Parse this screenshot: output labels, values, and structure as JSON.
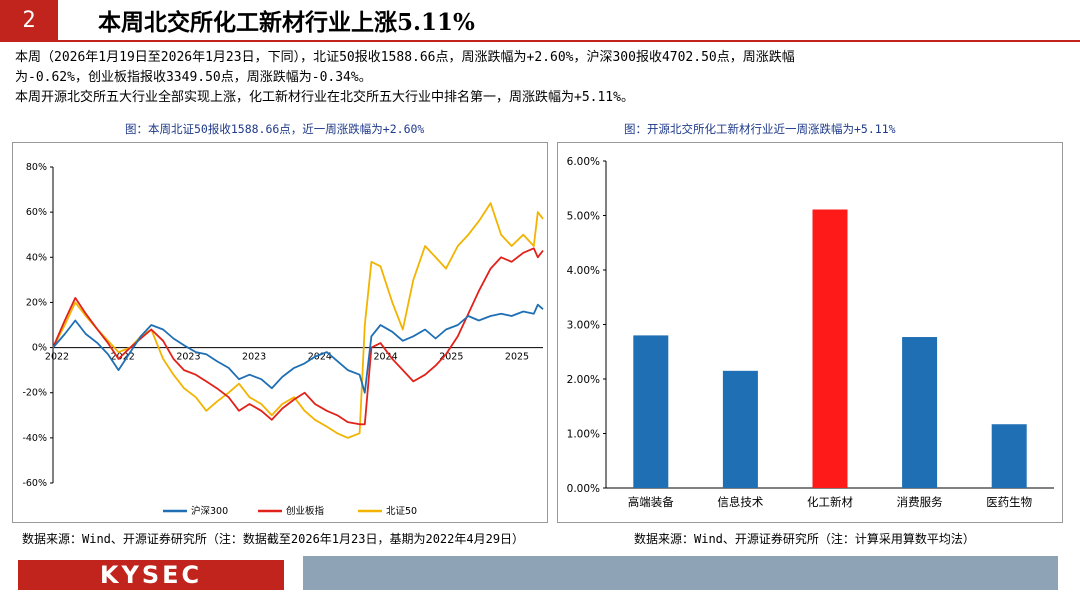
{
  "slide": {
    "page_number": "2",
    "title": "本周北交所化工新材行业上涨5.11%",
    "summary_lines": [
      "本周（2026年1月19日至2026年1月23日，下同），北证50报收1588.66点，周涨跌幅为+2.60%，沪深300报收4702.50点，周涨跌幅",
      "为-0.62%，创业板指报收3349.50点，周涨跌幅为-0.34%。",
      "本周开源北交所五大行业全部实现上涨，化工新材行业在北交所五大行业中排名第一，周涨跌幅为+5.11%。"
    ],
    "left_caption": "图：本周北证50报收1588.66点，近一周涨跌幅为+2.60%",
    "right_caption": "图：开源北交所化工新材行业近一周涨跌幅为+5.11%",
    "left_source": "数据来源：Wind、开源证券研究所（注：数据截至2026年1月23日，基期为2022年4月29日）",
    "right_source": "数据来源：Wind、开源证券研究所（注：计算采用算数平均法）",
    "logo_text": "KYSEC"
  },
  "colors": {
    "accent_red": "#c0241c",
    "csi300": "#1f6fb4",
    "chinext": "#e0221b",
    "bse50": "#f2b400",
    "bar_blue": "#1f6fb4",
    "bar_highlight": "#ff1a1a",
    "footer_bar": "#8ea3b5"
  },
  "chart_data": [
    {
      "type": "line",
      "x_tick_labels": [
        "2022",
        "2022",
        "2023",
        "2023",
        "2024",
        "2024",
        "2025",
        "2025"
      ],
      "y_tick_labels": [
        "80%",
        "60%",
        "40%",
        "20%",
        "0%",
        "-20%",
        "-40%",
        "-60%"
      ],
      "ylim": [
        -60,
        80
      ],
      "x_range": [
        2022.33,
        2026.07
      ],
      "grid": false,
      "legend_position": "bottom-center",
      "series": [
        {
          "name": "沪深300",
          "color": "#1f6fb4",
          "points": [
            [
              2022.33,
              0
            ],
            [
              2022.42,
              6
            ],
            [
              2022.5,
              12
            ],
            [
              2022.58,
              6
            ],
            [
              2022.67,
              2
            ],
            [
              2022.75,
              -3
            ],
            [
              2022.83,
              -10
            ],
            [
              2022.92,
              -2
            ],
            [
              2023.0,
              5
            ],
            [
              2023.08,
              10
            ],
            [
              2023.17,
              8
            ],
            [
              2023.25,
              4
            ],
            [
              2023.33,
              1
            ],
            [
              2023.42,
              -2
            ],
            [
              2023.5,
              -3
            ],
            [
              2023.58,
              -6
            ],
            [
              2023.67,
              -9
            ],
            [
              2023.75,
              -14
            ],
            [
              2023.83,
              -12
            ],
            [
              2023.92,
              -14
            ],
            [
              2024.0,
              -18
            ],
            [
              2024.08,
              -13
            ],
            [
              2024.17,
              -9
            ],
            [
              2024.25,
              -7
            ],
            [
              2024.33,
              -4
            ],
            [
              2024.42,
              -2
            ],
            [
              2024.5,
              -6
            ],
            [
              2024.58,
              -10
            ],
            [
              2024.67,
              -12
            ],
            [
              2024.71,
              -20
            ],
            [
              2024.76,
              5
            ],
            [
              2024.83,
              10
            ],
            [
              2024.92,
              7
            ],
            [
              2025.0,
              3
            ],
            [
              2025.08,
              5
            ],
            [
              2025.17,
              8
            ],
            [
              2025.25,
              4
            ],
            [
              2025.33,
              8
            ],
            [
              2025.42,
              10
            ],
            [
              2025.5,
              14
            ],
            [
              2025.58,
              12
            ],
            [
              2025.67,
              14
            ],
            [
              2025.75,
              15
            ],
            [
              2025.83,
              14
            ],
            [
              2025.92,
              16
            ],
            [
              2026.0,
              15
            ],
            [
              2026.03,
              19
            ],
            [
              2026.07,
              17
            ]
          ]
        },
        {
          "name": "创业板指",
          "color": "#e0221b",
          "points": [
            [
              2022.33,
              0
            ],
            [
              2022.42,
              12
            ],
            [
              2022.5,
              22
            ],
            [
              2022.58,
              15
            ],
            [
              2022.67,
              8
            ],
            [
              2022.75,
              2
            ],
            [
              2022.83,
              -5
            ],
            [
              2022.92,
              0
            ],
            [
              2023.0,
              4
            ],
            [
              2023.08,
              8
            ],
            [
              2023.17,
              3
            ],
            [
              2023.25,
              -5
            ],
            [
              2023.33,
              -10
            ],
            [
              2023.42,
              -12
            ],
            [
              2023.5,
              -15
            ],
            [
              2023.58,
              -18
            ],
            [
              2023.67,
              -22
            ],
            [
              2023.75,
              -28
            ],
            [
              2023.83,
              -25
            ],
            [
              2023.92,
              -28
            ],
            [
              2024.0,
              -32
            ],
            [
              2024.08,
              -27
            ],
            [
              2024.17,
              -23
            ],
            [
              2024.25,
              -20
            ],
            [
              2024.33,
              -25
            ],
            [
              2024.42,
              -28
            ],
            [
              2024.5,
              -30
            ],
            [
              2024.58,
              -33
            ],
            [
              2024.67,
              -34
            ],
            [
              2024.71,
              -34
            ],
            [
              2024.76,
              0
            ],
            [
              2024.83,
              2
            ],
            [
              2024.92,
              -5
            ],
            [
              2025.0,
              -10
            ],
            [
              2025.08,
              -15
            ],
            [
              2025.17,
              -12
            ],
            [
              2025.25,
              -8
            ],
            [
              2025.33,
              -3
            ],
            [
              2025.42,
              5
            ],
            [
              2025.5,
              15
            ],
            [
              2025.58,
              25
            ],
            [
              2025.67,
              35
            ],
            [
              2025.75,
              40
            ],
            [
              2025.83,
              38
            ],
            [
              2025.92,
              42
            ],
            [
              2026.0,
              44
            ],
            [
              2026.03,
              40
            ],
            [
              2026.07,
              43
            ]
          ]
        },
        {
          "name": "北证50",
          "color": "#f2b400",
          "points": [
            [
              2022.33,
              0
            ],
            [
              2022.42,
              10
            ],
            [
              2022.5,
              20
            ],
            [
              2022.58,
              14
            ],
            [
              2022.67,
              8
            ],
            [
              2022.75,
              3
            ],
            [
              2022.83,
              -2
            ],
            [
              2022.92,
              0
            ],
            [
              2023.0,
              5
            ],
            [
              2023.08,
              8
            ],
            [
              2023.17,
              -5
            ],
            [
              2023.25,
              -12
            ],
            [
              2023.33,
              -18
            ],
            [
              2023.42,
              -22
            ],
            [
              2023.5,
              -28
            ],
            [
              2023.58,
              -24
            ],
            [
              2023.67,
              -20
            ],
            [
              2023.75,
              -16
            ],
            [
              2023.83,
              -22
            ],
            [
              2023.92,
              -25
            ],
            [
              2024.0,
              -30
            ],
            [
              2024.08,
              -25
            ],
            [
              2024.17,
              -22
            ],
            [
              2024.25,
              -28
            ],
            [
              2024.33,
              -32
            ],
            [
              2024.42,
              -35
            ],
            [
              2024.5,
              -38
            ],
            [
              2024.58,
              -40
            ],
            [
              2024.67,
              -38
            ],
            [
              2024.71,
              10
            ],
            [
              2024.76,
              38
            ],
            [
              2024.83,
              36
            ],
            [
              2024.92,
              20
            ],
            [
              2025.0,
              8
            ],
            [
              2025.08,
              30
            ],
            [
              2025.17,
              45
            ],
            [
              2025.25,
              40
            ],
            [
              2025.33,
              35
            ],
            [
              2025.42,
              45
            ],
            [
              2025.5,
              50
            ],
            [
              2025.58,
              56
            ],
            [
              2025.67,
              64
            ],
            [
              2025.75,
              50
            ],
            [
              2025.83,
              45
            ],
            [
              2025.92,
              50
            ],
            [
              2026.0,
              45
            ],
            [
              2026.03,
              60
            ],
            [
              2026.07,
              57
            ]
          ]
        }
      ]
    },
    {
      "type": "bar",
      "categories": [
        "高端装备",
        "信息技术",
        "化工新材",
        "消费服务",
        "医药生物"
      ],
      "values": [
        2.8,
        2.15,
        5.11,
        2.77,
        1.17
      ],
      "highlight_index": 2,
      "y_tick_labels": [
        "6.00%",
        "5.00%",
        "4.00%",
        "3.00%",
        "2.00%",
        "1.00%",
        "0.00%"
      ],
      "ylim": [
        0,
        6
      ],
      "grid": false
    }
  ]
}
